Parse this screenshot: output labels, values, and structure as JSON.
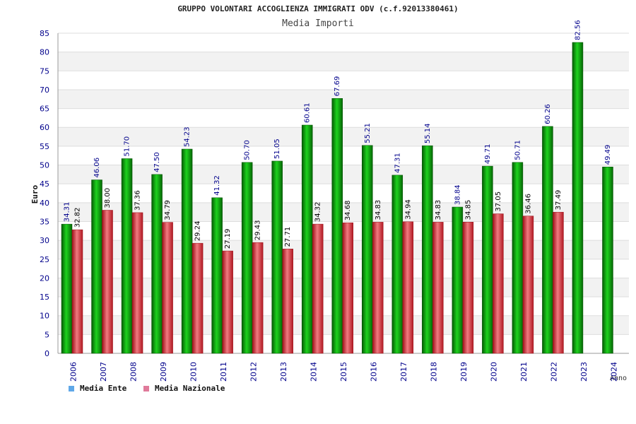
{
  "chart_data": {
    "type": "bar",
    "title": "GRUPPO VOLONTARI ACCOGLIENZA IMMIGRATI ODV (c.f.92013380461)",
    "subtitle": "Media Importi",
    "ylabel": "Euro",
    "xlabel": "Anno",
    "ylim": [
      0,
      85
    ],
    "ytick_step": 5,
    "grid": true,
    "legend_position": "bottom-left",
    "categories": [
      "2006",
      "2007",
      "2008",
      "2009",
      "2010",
      "2011",
      "2012",
      "2013",
      "2014",
      "2015",
      "2016",
      "2017",
      "2018",
      "2019",
      "2020",
      "2021",
      "2022",
      "2023",
      "2024"
    ],
    "series": [
      {
        "name": "Media Ente",
        "color": "#0a9a0a",
        "legend_color": "#5fa8e8",
        "values": [
          34.31,
          46.06,
          51.7,
          47.5,
          54.23,
          41.32,
          50.7,
          51.05,
          60.61,
          67.69,
          55.21,
          47.31,
          55.14,
          38.84,
          49.71,
          50.71,
          60.26,
          82.56,
          49.49
        ],
        "labels": [
          "34.31",
          "46.06",
          "51.70",
          "47.50",
          "54.23",
          "41.32",
          "50.70",
          "51.05",
          "60.61",
          "67.69",
          "55.21",
          "47.31",
          "55.14",
          "38.84",
          "49.71",
          "50.71",
          "60.26",
          "82.56",
          "49.49"
        ]
      },
      {
        "name": "Media Nazionale",
        "color": "#d8323c",
        "legend_color": "#e07a9a",
        "values": [
          32.82,
          38.0,
          37.36,
          34.79,
          29.24,
          27.19,
          29.43,
          27.71,
          34.32,
          34.68,
          34.83,
          34.94,
          34.83,
          34.85,
          37.05,
          36.46,
          37.49,
          null,
          null
        ],
        "labels": [
          "32.82",
          "38.00",
          "37.36",
          "34.79",
          "29.24",
          "27.19",
          "29.43",
          "27.71",
          "34.32",
          "34.68",
          "34.83",
          "34.94",
          "34.83",
          "34.85",
          "37.05",
          "36.46",
          "37.49",
          null,
          null
        ]
      }
    ]
  }
}
